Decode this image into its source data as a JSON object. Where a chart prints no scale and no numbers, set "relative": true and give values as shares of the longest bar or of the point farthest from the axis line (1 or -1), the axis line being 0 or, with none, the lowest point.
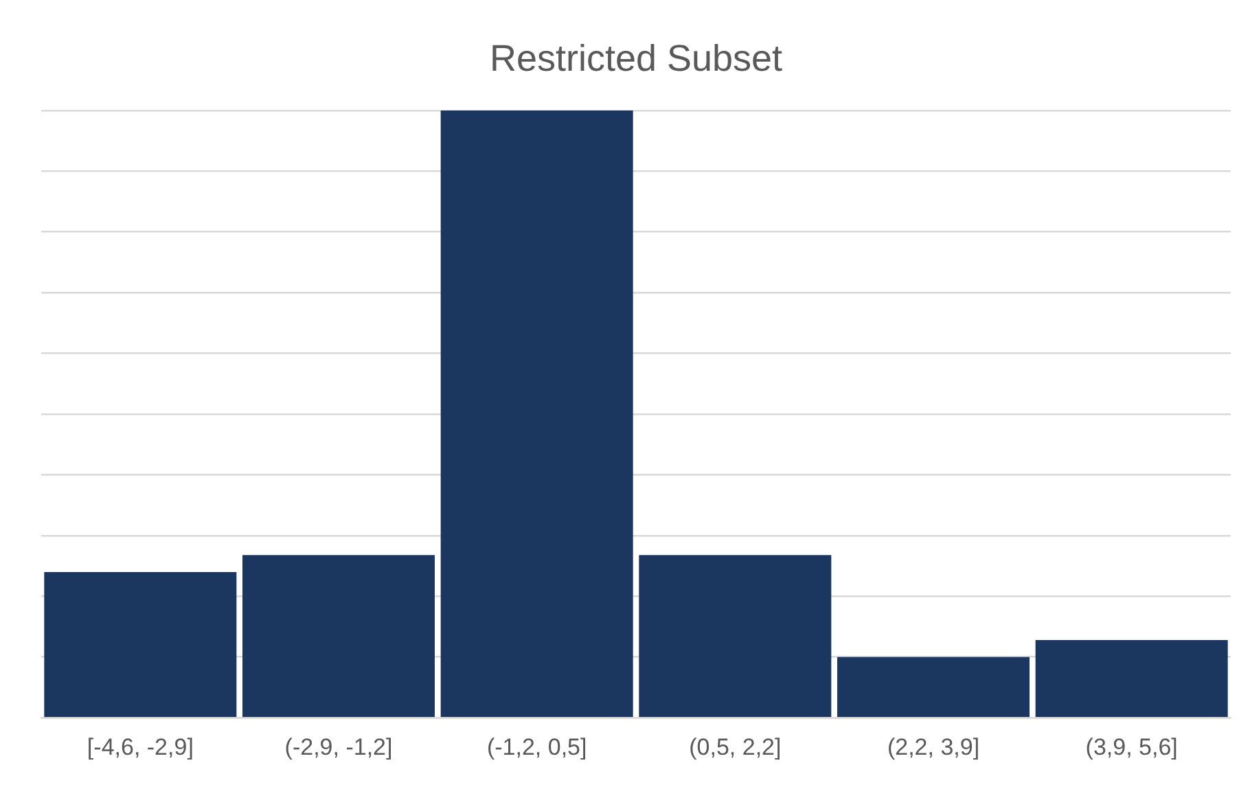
{
  "chart_data": {
    "type": "bar",
    "title": "Restricted Subset",
    "categories": [
      "[-4,6, -2,9]",
      "(-2,9, -1,2]",
      "(-1,2, 0,5]",
      "(0,5, 2,2]",
      "(2,2, 3,9]",
      "(3,9, 5,6]"
    ],
    "values": [
      0.24,
      0.268,
      1,
      0.268,
      0.1,
      0.128
    ],
    "color": "#1b365f",
    "relative": true,
    "grid": "y",
    "legend": false
  }
}
